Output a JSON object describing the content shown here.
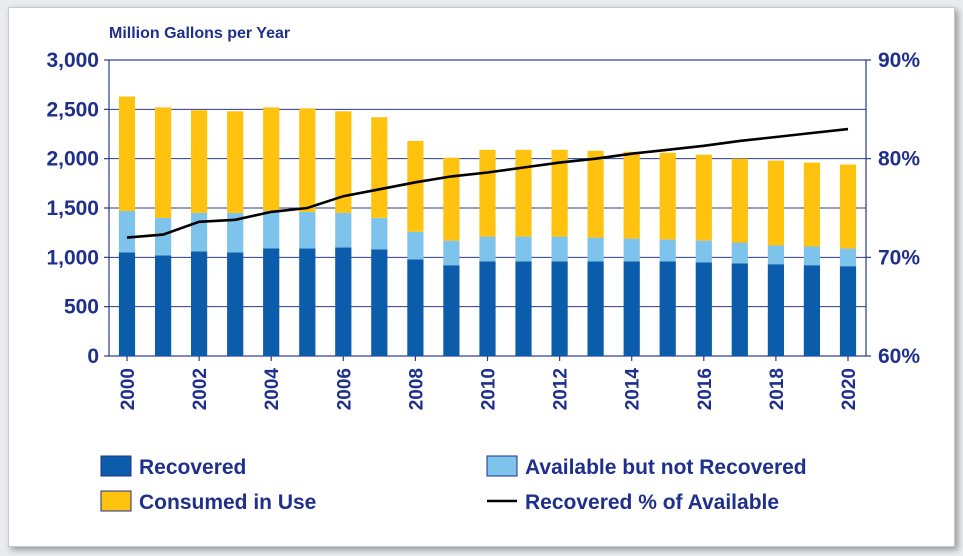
{
  "chart_data": {
    "type": "bar",
    "stacked": true,
    "title": "Million Gallons per Year",
    "x": [
      2000,
      2001,
      2002,
      2003,
      2004,
      2005,
      2006,
      2007,
      2008,
      2009,
      2010,
      2011,
      2012,
      2013,
      2014,
      2015,
      2016,
      2017,
      2018,
      2019,
      2020
    ],
    "x_tick_labels": [
      "2000",
      "2002",
      "2004",
      "2006",
      "2008",
      "2010",
      "2012",
      "2014",
      "2016",
      "2018",
      "2020"
    ],
    "series": [
      {
        "name": "Recovered",
        "axis": "left",
        "color": "#0b5cab",
        "values": [
          1050,
          1020,
          1060,
          1050,
          1090,
          1090,
          1100,
          1080,
          980,
          920,
          960,
          960,
          960,
          960,
          960,
          960,
          950,
          940,
          930,
          920,
          910
        ]
      },
      {
        "name": "Available but not Recovered",
        "axis": "left",
        "color": "#7ec3ec",
        "values": [
          420,
          380,
          390,
          400,
          380,
          370,
          350,
          320,
          280,
          250,
          250,
          250,
          250,
          240,
          230,
          220,
          220,
          210,
          190,
          190,
          180
        ]
      },
      {
        "name": "Consumed in Use",
        "axis": "left",
        "color": "#ffc20e",
        "values": [
          1160,
          1120,
          1040,
          1030,
          1050,
          1050,
          1030,
          1020,
          920,
          840,
          880,
          880,
          880,
          880,
          880,
          880,
          870,
          850,
          860,
          850,
          850
        ]
      },
      {
        "name": "Recovered % of Available",
        "axis": "right",
        "type": "line",
        "color": "#000000",
        "values": [
          72,
          72.3,
          73.6,
          73.8,
          74.6,
          75,
          76.2,
          76.9,
          77.6,
          78.2,
          78.6,
          79.1,
          79.6,
          80,
          80.5,
          80.9,
          81.3,
          81.8,
          82.2,
          82.6,
          83
        ]
      }
    ],
    "left_axis": {
      "ylim": [
        0,
        3000
      ],
      "ticks": [
        "0",
        "500",
        "1,000",
        "1,500",
        "2,000",
        "2,500",
        "3,000"
      ]
    },
    "right_axis": {
      "ylim": [
        60,
        90
      ],
      "ticks": [
        "60%",
        "70%",
        "80%",
        "90%"
      ]
    },
    "grid": true,
    "legend_position": "bottom",
    "colors": {
      "axis_text": "#1f2f8c",
      "grid": "#2a3a8f",
      "frame": "#2a3a8f"
    }
  }
}
